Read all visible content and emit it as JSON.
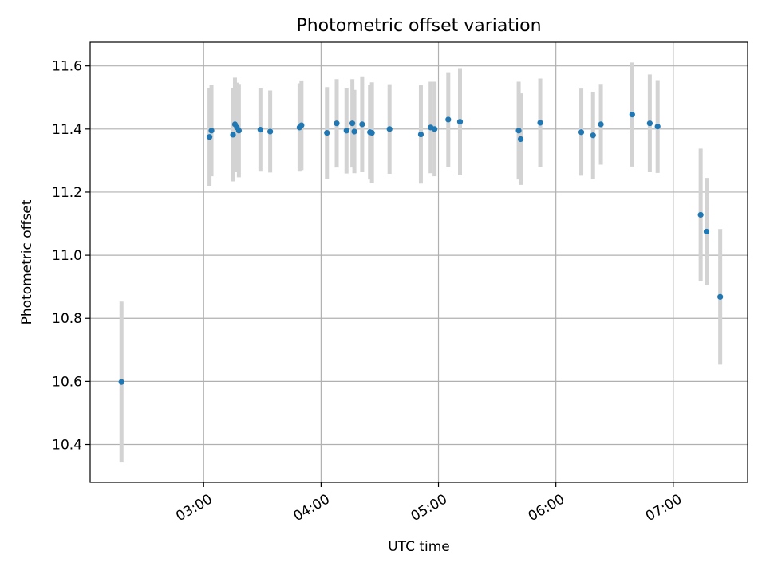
{
  "chart_data": {
    "type": "scatter",
    "title": "Photometric offset variation",
    "xlabel": "UTC time",
    "ylabel": "Photometric offset",
    "x_axis_type": "time",
    "xlim": [
      "02:02",
      "07:38"
    ],
    "ylim": [
      10.28,
      11.675
    ],
    "x_ticks": [
      "03:00",
      "04:00",
      "05:00",
      "06:00",
      "07:00"
    ],
    "y_ticks": [
      10.4,
      10.6,
      10.8,
      11.0,
      11.2,
      11.4,
      11.6
    ],
    "grid": true,
    "legend": "none",
    "colors": {
      "point": "#1f77b4",
      "errorbar": "#d3d3d3",
      "grid": "#b0b0b0"
    },
    "points": [
      {
        "x": "02:18",
        "y": 10.598,
        "err": 0.255
      },
      {
        "x": "03:03",
        "y": 11.375,
        "err": 0.155
      },
      {
        "x": "03:04",
        "y": 11.395,
        "err": 0.145
      },
      {
        "x": "03:15",
        "y": 11.382,
        "err": 0.148
      },
      {
        "x": "03:16",
        "y": 11.415,
        "err": 0.148
      },
      {
        "x": "03:17",
        "y": 11.405,
        "err": 0.142
      },
      {
        "x": "03:18",
        "y": 11.395,
        "err": 0.148
      },
      {
        "x": "03:29",
        "y": 11.398,
        "err": 0.133
      },
      {
        "x": "03:34",
        "y": 11.392,
        "err": 0.13
      },
      {
        "x": "03:49",
        "y": 11.405,
        "err": 0.14
      },
      {
        "x": "03:50",
        "y": 11.412,
        "err": 0.142
      },
      {
        "x": "04:03",
        "y": 11.388,
        "err": 0.145
      },
      {
        "x": "04:08",
        "y": 11.418,
        "err": 0.14
      },
      {
        "x": "04:13",
        "y": 11.395,
        "err": 0.136
      },
      {
        "x": "04:16",
        "y": 11.418,
        "err": 0.14
      },
      {
        "x": "04:17",
        "y": 11.392,
        "err": 0.132
      },
      {
        "x": "04:21",
        "y": 11.415,
        "err": 0.152
      },
      {
        "x": "04:25",
        "y": 11.39,
        "err": 0.15
      },
      {
        "x": "04:26",
        "y": 11.388,
        "err": 0.16
      },
      {
        "x": "04:35",
        "y": 11.4,
        "err": 0.142
      },
      {
        "x": "04:51",
        "y": 11.383,
        "err": 0.156
      },
      {
        "x": "04:56",
        "y": 11.405,
        "err": 0.145
      },
      {
        "x": "04:58",
        "y": 11.4,
        "err": 0.15
      },
      {
        "x": "05:05",
        "y": 11.43,
        "err": 0.15
      },
      {
        "x": "05:11",
        "y": 11.423,
        "err": 0.17
      },
      {
        "x": "05:41",
        "y": 11.395,
        "err": 0.155
      },
      {
        "x": "05:42",
        "y": 11.368,
        "err": 0.145
      },
      {
        "x": "05:52",
        "y": 11.42,
        "err": 0.14
      },
      {
        "x": "06:13",
        "y": 11.39,
        "err": 0.138
      },
      {
        "x": "06:19",
        "y": 11.38,
        "err": 0.138
      },
      {
        "x": "06:23",
        "y": 11.415,
        "err": 0.128
      },
      {
        "x": "06:39",
        "y": 11.446,
        "err": 0.165
      },
      {
        "x": "06:48",
        "y": 11.418,
        "err": 0.155
      },
      {
        "x": "06:52",
        "y": 11.408,
        "err": 0.147
      },
      {
        "x": "07:14",
        "y": 11.128,
        "err": 0.21
      },
      {
        "x": "07:17",
        "y": 11.075,
        "err": 0.17
      },
      {
        "x": "07:24",
        "y": 10.868,
        "err": 0.215
      }
    ]
  }
}
